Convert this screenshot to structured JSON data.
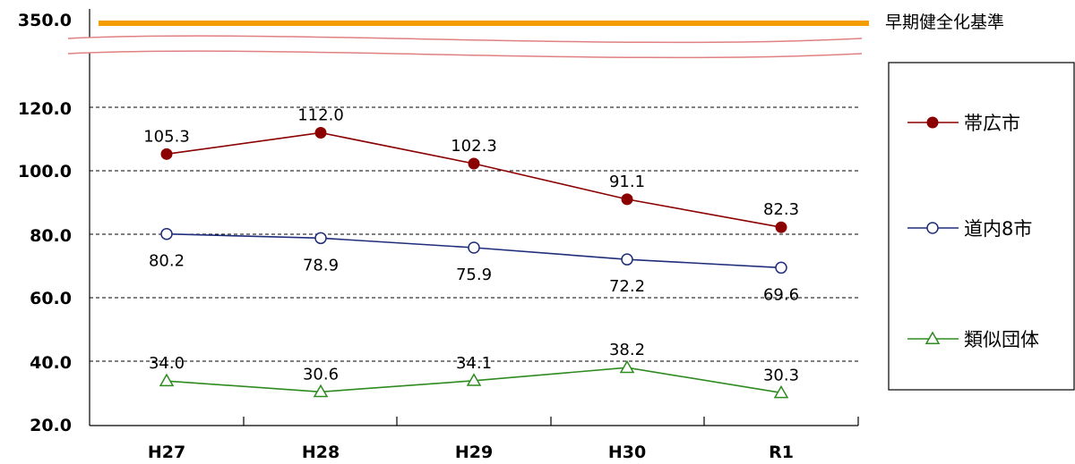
{
  "chart_data": {
    "type": "line",
    "categories": [
      "H27",
      "H28",
      "H29",
      "H30",
      "R1"
    ],
    "y_axis": {
      "ticks": [
        20,
        40,
        60,
        80,
        100,
        120
      ],
      "tick_labels": [
        "20.0",
        "40.0",
        "60.0",
        "80.0",
        "100.0",
        "120.0"
      ],
      "break_label": "350.0",
      "ylim": [
        20,
        120
      ],
      "axis_break": true,
      "grid": "dashed"
    },
    "reference_line": {
      "name": "早期健全化基準",
      "value": 350.0,
      "color": "#f59c00"
    },
    "series": [
      {
        "name": "帯広市",
        "values": [
          105.3,
          112.0,
          102.3,
          91.1,
          82.3
        ],
        "labels": [
          "105.3",
          "112.0",
          "102.3",
          "91.1",
          "82.3"
        ],
        "label_position": "above",
        "color": "#8b0000",
        "marker": "filled-circle"
      },
      {
        "name": "道内8市",
        "values": [
          80.2,
          78.9,
          75.9,
          72.2,
          69.6
        ],
        "labels": [
          "80.2",
          "78.9",
          "75.9",
          "72.2",
          "69.6"
        ],
        "label_position": "below",
        "color": "#1f2d7a",
        "marker": "open-circle"
      },
      {
        "name": "類似団体",
        "values": [
          34.0,
          30.6,
          34.1,
          38.2,
          30.3
        ],
        "labels": [
          "34.0",
          "30.6",
          "34.1",
          "38.2",
          "30.3"
        ],
        "label_position": "above",
        "color": "#2e8b1f",
        "marker": "open-triangle"
      }
    ],
    "legend": {
      "placement": "right",
      "entries": [
        "帯広市",
        "道内8市",
        "類似団体"
      ]
    }
  }
}
